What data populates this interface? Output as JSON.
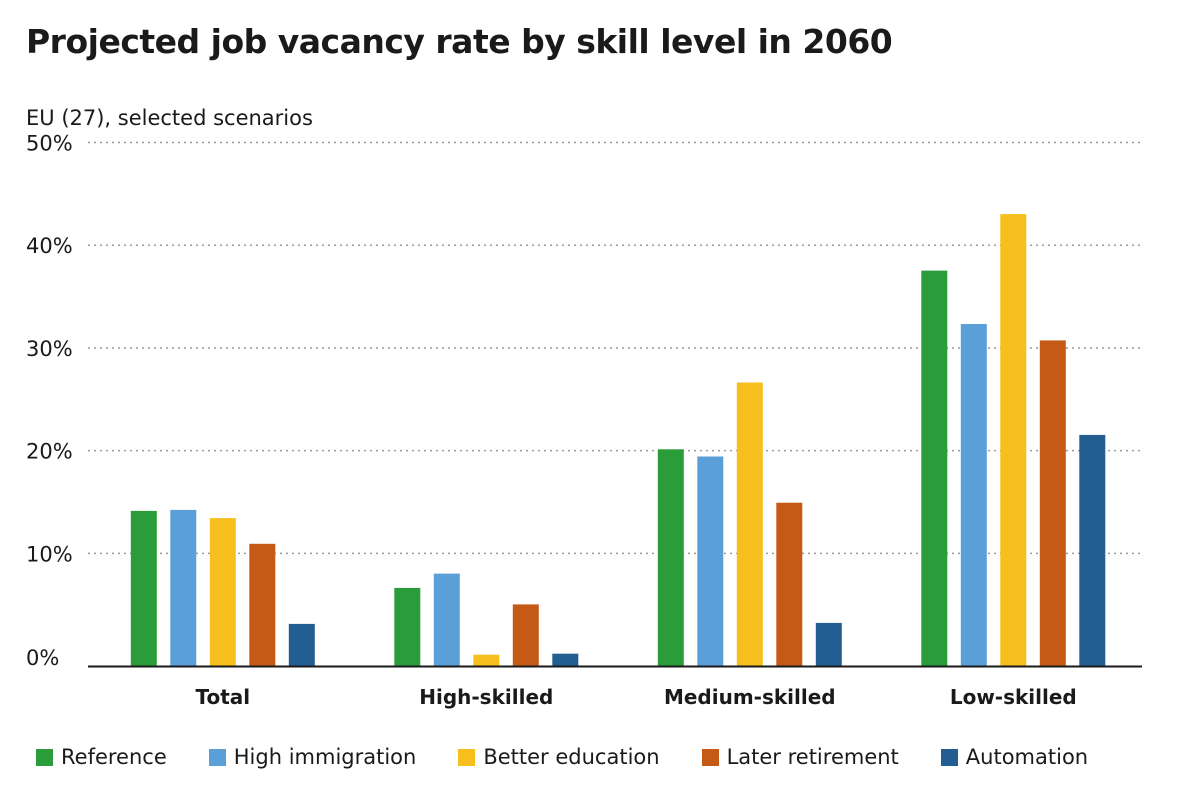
{
  "chart_data": {
    "type": "bar",
    "title": "Projected job vacancy rate by skill level in 2060",
    "subtitle": "EU (27), selected scenarios",
    "categories": [
      "Total",
      "High-skilled",
      "Medium-skilled",
      "Low-skilled"
    ],
    "y_ticks": [
      {
        "value": 0,
        "label": "0%"
      },
      {
        "value": 10,
        "label": "10%"
      },
      {
        "value": 20,
        "label": "20%"
      },
      {
        "value": 30,
        "label": "30%"
      },
      {
        "value": 40,
        "label": "40%"
      },
      {
        "value": 50,
        "label": "50%"
      }
    ],
    "ylim": [
      0,
      50
    ],
    "grid": true,
    "legend_position": "bottom",
    "series": [
      {
        "name": "Reference",
        "color": "#2a9d3a",
        "values": [
          15.1,
          7.6,
          21.1,
          38.5
        ]
      },
      {
        "name": "High immigration",
        "color": "#5b9fd8",
        "values": [
          15.2,
          9.0,
          20.4,
          33.3
        ]
      },
      {
        "name": "Better education",
        "color": "#f7bf1e",
        "values": [
          14.4,
          1.1,
          27.6,
          44.0
        ]
      },
      {
        "name": "Later retirement",
        "color": "#c45a16",
        "values": [
          11.9,
          6.0,
          15.9,
          31.7
        ]
      },
      {
        "name": "Automation",
        "color": "#235e93",
        "values": [
          4.1,
          1.2,
          4.2,
          22.5
        ]
      }
    ]
  }
}
